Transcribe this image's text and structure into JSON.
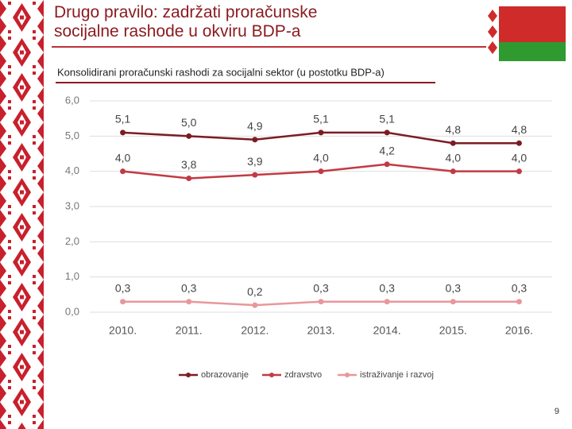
{
  "slide_title": "Drugo pravilo: zadržati proračunske socijalne rashode u okviru BDP-a",
  "page_number": "9",
  "chart_data": {
    "type": "line",
    "title": "Konsolidirani proračunski rashodi za socijalni sektor (u postotku BDP-a)",
    "categories": [
      "2010.",
      "2011.",
      "2012.",
      "2013.",
      "2014.",
      "2015.",
      "2016."
    ],
    "series": [
      {
        "name": "obrazovanje",
        "color": "#7b1c24",
        "values": [
          5.1,
          5.0,
          4.9,
          5.1,
          5.1,
          4.8,
          4.8
        ],
        "value_labels": [
          "5,1",
          "5,0",
          "4,9",
          "5,1",
          "5,1",
          "4,8",
          "4,8"
        ]
      },
      {
        "name": "zdravstvo",
        "color": "#c23a43",
        "values": [
          4.0,
          3.8,
          3.9,
          4.0,
          4.2,
          4.0,
          4.0
        ],
        "value_labels": [
          "4,0",
          "3,8",
          "3,9",
          "4,0",
          "4,2",
          "4,0",
          "4,0"
        ]
      },
      {
        "name": "istraživanje i razvoj",
        "color": "#e8979c",
        "values": [
          0.3,
          0.3,
          0.2,
          0.3,
          0.3,
          0.3,
          0.3
        ],
        "value_labels": [
          "0,3",
          "0,3",
          "0,2",
          "0,3",
          "0,3",
          "0,3",
          "0,3"
        ]
      }
    ],
    "ylim": [
      0,
      6
    ],
    "yticks": [
      {
        "value": 0,
        "label": "0,0"
      },
      {
        "value": 1,
        "label": "1,0"
      },
      {
        "value": 2,
        "label": "2,0"
      },
      {
        "value": 3,
        "label": "3,0"
      },
      {
        "value": 4,
        "label": "4,0"
      },
      {
        "value": 5,
        "label": "5,0"
      },
      {
        "value": 6,
        "label": "6,0"
      }
    ],
    "grid": true
  }
}
